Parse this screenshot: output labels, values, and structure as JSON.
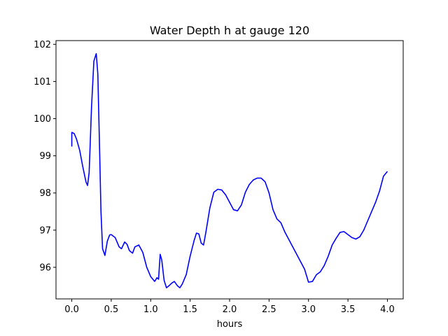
{
  "chart_data": {
    "type": "line",
    "title": "Water Depth h at gauge 120",
    "xlabel": "hours",
    "ylabel": "",
    "xlim": [
      -0.2,
      4.2
    ],
    "ylim": [
      95.15,
      102.1
    ],
    "xticks": [
      0.0,
      0.5,
      1.0,
      1.5,
      2.0,
      2.5,
      3.0,
      3.5,
      4.0
    ],
    "xtick_labels": [
      "0.0",
      "0.5",
      "1.0",
      "1.5",
      "2.0",
      "2.5",
      "3.0",
      "3.5",
      "4.0"
    ],
    "yticks": [
      96,
      97,
      98,
      99,
      100,
      101,
      102
    ],
    "ytick_labels": [
      "96",
      "97",
      "98",
      "99",
      "100",
      "101",
      "102"
    ],
    "grid": false,
    "series": [
      {
        "color": "#0000ff",
        "x": [
          0.0,
          0.0,
          0.03,
          0.06,
          0.1,
          0.14,
          0.18,
          0.2,
          0.22,
          0.25,
          0.28,
          0.31,
          0.33,
          0.35,
          0.37,
          0.39,
          0.42,
          0.45,
          0.48,
          0.5,
          0.55,
          0.6,
          0.63,
          0.67,
          0.7,
          0.73,
          0.77,
          0.8,
          0.85,
          0.9,
          0.95,
          1.0,
          1.05,
          1.08,
          1.1,
          1.12,
          1.14,
          1.17,
          1.2,
          1.23,
          1.27,
          1.3,
          1.34,
          1.37,
          1.4,
          1.45,
          1.5,
          1.55,
          1.58,
          1.61,
          1.64,
          1.67,
          1.7,
          1.75,
          1.8,
          1.85,
          1.9,
          1.95,
          2.0,
          2.05,
          2.1,
          2.15,
          2.2,
          2.25,
          2.3,
          2.35,
          2.4,
          2.45,
          2.5,
          2.55,
          2.6,
          2.65,
          2.7,
          2.8,
          2.9,
          2.95,
          3.0,
          3.05,
          3.1,
          3.15,
          3.2,
          3.25,
          3.3,
          3.35,
          3.4,
          3.45,
          3.5,
          3.55,
          3.6,
          3.65,
          3.7,
          3.75,
          3.8,
          3.85,
          3.9,
          3.95,
          4.0
        ],
        "y": [
          99.25,
          99.63,
          99.6,
          99.45,
          99.15,
          98.7,
          98.3,
          98.2,
          98.55,
          100.3,
          101.55,
          101.75,
          101.2,
          99.4,
          97.5,
          96.5,
          96.32,
          96.7,
          96.87,
          96.88,
          96.8,
          96.55,
          96.5,
          96.68,
          96.62,
          96.45,
          96.38,
          96.55,
          96.6,
          96.4,
          96.0,
          95.75,
          95.62,
          95.72,
          95.68,
          96.35,
          96.2,
          95.65,
          95.45,
          95.5,
          95.58,
          95.62,
          95.5,
          95.45,
          95.55,
          95.8,
          96.3,
          96.72,
          96.92,
          96.9,
          96.65,
          96.6,
          96.95,
          97.6,
          98.02,
          98.1,
          98.08,
          97.95,
          97.75,
          97.55,
          97.52,
          97.68,
          98.02,
          98.23,
          98.35,
          98.4,
          98.4,
          98.3,
          98.0,
          97.55,
          97.3,
          97.2,
          96.95,
          96.55,
          96.15,
          95.95,
          95.6,
          95.62,
          95.8,
          95.88,
          96.05,
          96.3,
          96.6,
          96.78,
          96.94,
          96.96,
          96.88,
          96.8,
          96.76,
          96.82,
          97.0,
          97.25,
          97.5,
          97.75,
          98.05,
          98.45,
          98.58
        ]
      }
    ]
  }
}
